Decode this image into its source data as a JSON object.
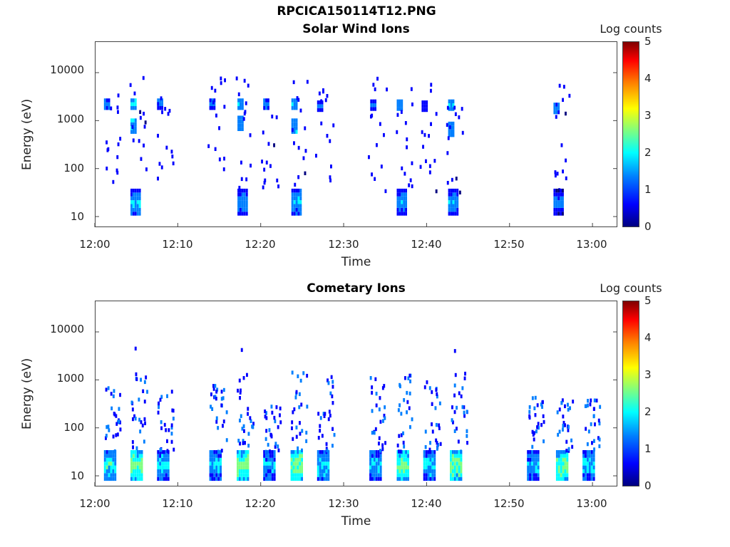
{
  "figure_title": "RPCICA150114T12.PNG",
  "colorbar": {
    "label": "Log counts",
    "ticks": [
      "5",
      "4",
      "3",
      "2",
      "1",
      "0"
    ],
    "colors": [
      "#00007f",
      "#0000ff",
      "#007fff",
      "#00ffff",
      "#7fff7f",
      "#ffff00",
      "#ff7f00",
      "#ff0000",
      "#7f0000"
    ]
  },
  "chart_data": [
    {
      "type": "heatmap",
      "title": "Solar Wind Ions",
      "xlabel": "Time",
      "ylabel": "Energy (eV)",
      "x_ticks": [
        "12:00",
        "12:10",
        "12:20",
        "12:30",
        "12:40",
        "12:50",
        "13:00"
      ],
      "y_ticks": [
        "10000",
        "1000",
        "100",
        "10"
      ],
      "y_scale": "log",
      "ylim": [
        6,
        45000
      ],
      "xlim_minutes": [
        0,
        63
      ],
      "color_range": [
        0,
        5
      ],
      "clusters": [
        {
          "t": 1.1,
          "high_e": 2200,
          "mid_e": 0,
          "low": false,
          "level": 1.6
        },
        {
          "t": 4.3,
          "high_e": 2200,
          "mid_e": 700,
          "low": true,
          "level": 2.0
        },
        {
          "t": 7.5,
          "high_e": 2200,
          "mid_e": 0,
          "low": false,
          "level": 1.5
        },
        {
          "t": 13.8,
          "high_e": 2200,
          "mid_e": 0,
          "low": false,
          "level": 1.5
        },
        {
          "t": 17.2,
          "high_e": 2200,
          "mid_e": 800,
          "low": true,
          "level": 1.8
        },
        {
          "t": 20.3,
          "high_e": 2200,
          "mid_e": 0,
          "low": false,
          "level": 1.4
        },
        {
          "t": 23.7,
          "high_e": 2200,
          "mid_e": 700,
          "low": true,
          "level": 1.9
        },
        {
          "t": 26.8,
          "high_e": 2000,
          "mid_e": 0,
          "low": false,
          "level": 1.3
        },
        {
          "t": 33.2,
          "high_e": 2100,
          "mid_e": 0,
          "low": false,
          "level": 1.4
        },
        {
          "t": 36.4,
          "high_e": 2100,
          "mid_e": 0,
          "low": true,
          "level": 1.7
        },
        {
          "t": 39.4,
          "high_e": 2000,
          "mid_e": 0,
          "low": false,
          "level": 1.2
        },
        {
          "t": 42.6,
          "high_e": 2100,
          "mid_e": 600,
          "low": true,
          "level": 1.8
        },
        {
          "t": 55.3,
          "high_e": 1800,
          "mid_e": 0,
          "low": true,
          "level": 1.6
        }
      ]
    },
    {
      "type": "heatmap",
      "title": "Cometary Ions",
      "xlabel": "Time",
      "ylabel": "Energy (eV)",
      "x_ticks": [
        "12:00",
        "12:10",
        "12:20",
        "12:30",
        "12:40",
        "12:50",
        "13:00"
      ],
      "y_ticks": [
        "10000",
        "1000",
        "100",
        "10"
      ],
      "y_scale": "log",
      "ylim": [
        6,
        45000
      ],
      "xlim_minutes": [
        0,
        63
      ],
      "color_range": [
        0,
        5
      ],
      "clusters": [
        {
          "t": 1.6,
          "max_e": 800,
          "level": 2.4
        },
        {
          "t": 4.8,
          "max_e": 4500,
          "level": 2.9
        },
        {
          "t": 8.0,
          "max_e": 600,
          "level": 2.2
        },
        {
          "t": 14.3,
          "max_e": 900,
          "level": 2.1
        },
        {
          "t": 17.6,
          "max_e": 4200,
          "level": 2.9
        },
        {
          "t": 20.8,
          "max_e": 300,
          "level": 2.0
        },
        {
          "t": 24.1,
          "max_e": 1600,
          "level": 3.0
        },
        {
          "t": 27.3,
          "max_e": 1200,
          "level": 2.3
        },
        {
          "t": 33.6,
          "max_e": 1200,
          "level": 2.1
        },
        {
          "t": 36.9,
          "max_e": 1300,
          "level": 2.8
        },
        {
          "t": 40.1,
          "max_e": 1000,
          "level": 2.2
        },
        {
          "t": 43.3,
          "max_e": 4000,
          "level": 2.9
        },
        {
          "t": 52.6,
          "max_e": 450,
          "level": 2.1
        },
        {
          "t": 56.1,
          "max_e": 450,
          "level": 2.9
        },
        {
          "t": 59.3,
          "max_e": 400,
          "level": 2.3
        }
      ]
    }
  ]
}
